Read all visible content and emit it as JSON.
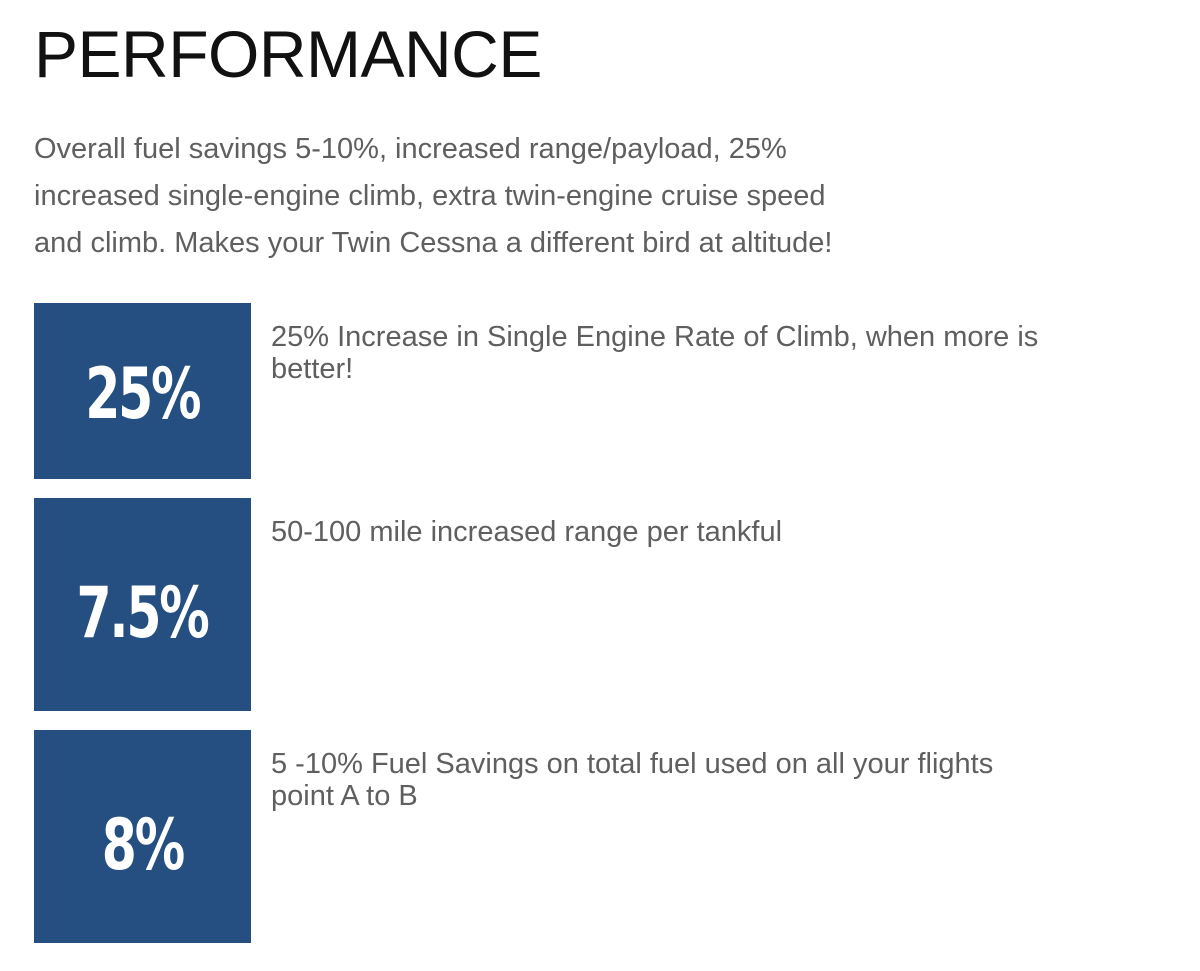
{
  "section": {
    "title": "PERFORMANCE",
    "intro_lines": [
      "Overall fuel savings 5-10%, increased range/payload, 25%",
      "increased single-engine climb, extra twin-engine cruise speed",
      "and climb. Makes your Twin Cessna a different bird at altitude!"
    ]
  },
  "stats": [
    {
      "value": "25%",
      "description_lines": [
        "25% Increase in Single Engine Rate of Climb, when more is",
        "better!"
      ]
    },
    {
      "value": "7.5%",
      "description_lines": [
        "50-100 mile increased range per tankful"
      ]
    },
    {
      "value": "8%",
      "description_lines": [
        "5 -10% Fuel Savings on total fuel used on all your flights",
        "point A to B"
      ]
    }
  ],
  "colors": {
    "stat_box_background": "#244f80",
    "stat_value_text": "#ffffff",
    "title_text": "#111111",
    "body_text": "#5f5f5f",
    "page_background": "#ffffff"
  }
}
